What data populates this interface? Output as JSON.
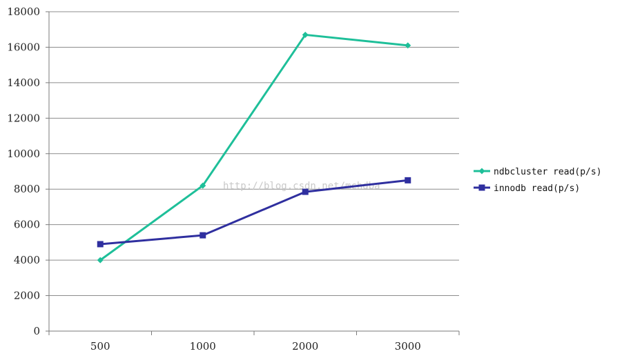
{
  "chart_data": {
    "type": "line",
    "categories": [
      "500",
      "1000",
      "2000",
      "3000"
    ],
    "series": [
      {
        "name": "ndbcluster read(p/s)",
        "values": [
          4000,
          8200,
          16700,
          16100
        ],
        "color": "#1ebf99",
        "marker": "diamond"
      },
      {
        "name": "innodb read(p/s)",
        "values": [
          4900,
          5400,
          7850,
          8500
        ],
        "color": "#2f2f9f",
        "marker": "square"
      }
    ],
    "y_ticks": [
      "0",
      "2000",
      "4000",
      "6000",
      "8000",
      "10000",
      "12000",
      "14000",
      "16000",
      "18000"
    ],
    "ylim": [
      0,
      18000
    ],
    "grid": "horizontal",
    "legend_position": "right",
    "watermark": "http://blog.csdn.net/mchdba"
  }
}
